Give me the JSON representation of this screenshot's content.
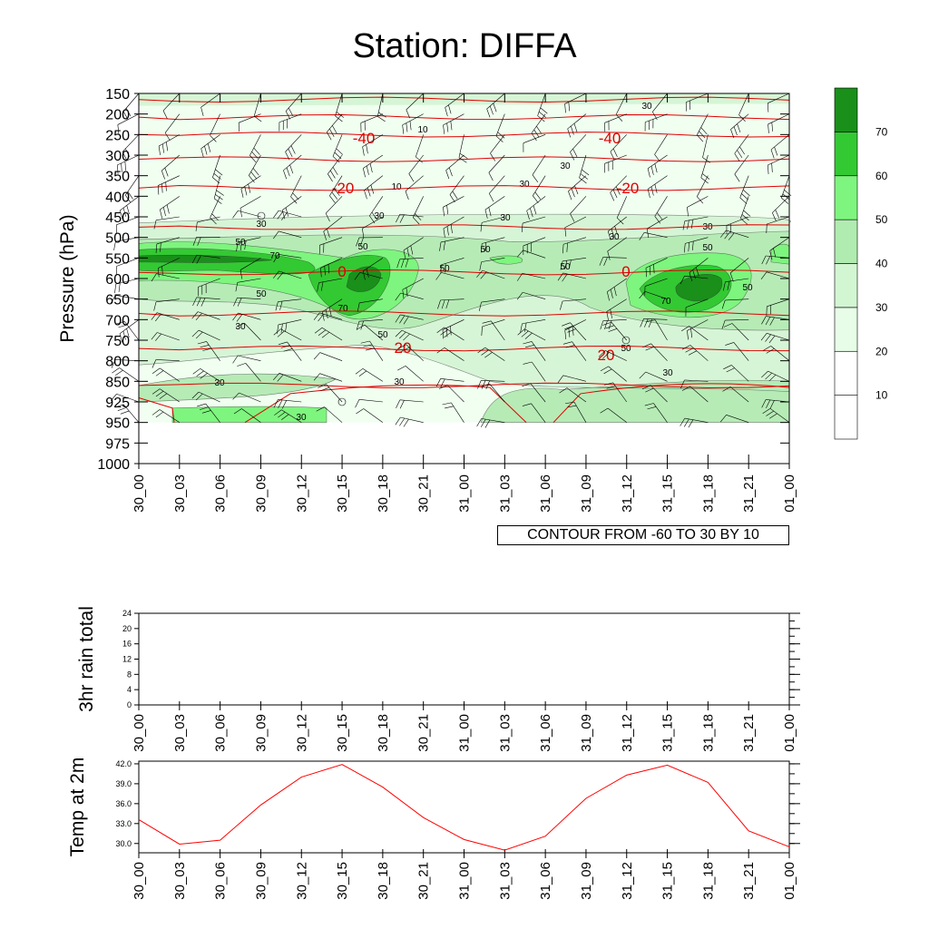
{
  "title": "Station: DIFFA",
  "colors": {
    "temp_line": "#ff0000",
    "isotherm": "#e00000",
    "shade": [
      "#ffffff",
      "#f0fff0",
      "#d6f5d6",
      "#b6ebb6",
      "#7ef57e",
      "#33c933",
      "#1a8f1a"
    ]
  },
  "time_labels": [
    "30_00",
    "30_03",
    "30_06",
    "30_09",
    "30_12",
    "30_15",
    "30_18",
    "30_21",
    "31_00",
    "31_03",
    "31_06",
    "31_09",
    "31_12",
    "31_15",
    "31_18",
    "31_21",
    "01_00"
  ],
  "contour_note": "CONTOUR FROM -60 TO 30 BY 10",
  "chart_data": [
    {
      "type": "heatmap",
      "title": "Station: DIFFA",
      "ylabel": "Pressure (hPa)",
      "y_ticks": [
        "150",
        "200",
        "250",
        "300",
        "350",
        "400",
        "450",
        "500",
        "550",
        "600",
        "650",
        "700",
        "750",
        "800",
        "850",
        "925",
        "950",
        "975",
        "1000"
      ],
      "colorbar": {
        "labels": [
          "10",
          "20",
          "30",
          "40",
          "50",
          "60",
          "70"
        ],
        "bins": [
          0,
          10,
          20,
          30,
          40,
          50,
          60,
          70,
          80
        ]
      },
      "shade_contour_labels": [
        "10",
        "30",
        "50",
        "70"
      ],
      "isotherm_labels": [
        {
          "value": "-40",
          "time": "30_15",
          "pressure": 250
        },
        {
          "value": "-40",
          "time": "31_12",
          "pressure": 250
        },
        {
          "value": "-20",
          "time": "30_15",
          "pressure": 400
        },
        {
          "value": "-20",
          "time": "31_12",
          "pressure": 400
        },
        {
          "value": "0",
          "time": "30_15",
          "pressure": 600
        },
        {
          "value": "0",
          "time": "31_12",
          "pressure": 600
        },
        {
          "value": "20",
          "time": "30_18",
          "pressure": 780
        },
        {
          "value": "20",
          "time": "31_12",
          "pressure": 790
        }
      ],
      "annotation": "CONTOUR FROM -60 TO 30 BY 10"
    },
    {
      "type": "line",
      "ylabel": "3hr rain total",
      "y_ticks": [
        "0",
        "4",
        "8",
        "12",
        "16",
        "20",
        "24"
      ],
      "ylim": [
        0,
        24
      ],
      "categories": [
        "30_00",
        "30_03",
        "30_06",
        "30_09",
        "30_12",
        "30_15",
        "30_18",
        "30_21",
        "31_00",
        "31_03",
        "31_06",
        "31_09",
        "31_12",
        "31_15",
        "31_18",
        "31_21",
        "01_00"
      ],
      "values": [
        0,
        0,
        0,
        0,
        0,
        0,
        0,
        0,
        0,
        0,
        0,
        0,
        0,
        0,
        0,
        0,
        0
      ]
    },
    {
      "type": "line",
      "ylabel": "Temp at 2m",
      "y_ticks": [
        "30.0",
        "33.0",
        "36.0",
        "39.0",
        "42.0"
      ],
      "ylim": [
        28.6,
        42.4
      ],
      "categories": [
        "30_00",
        "30_03",
        "30_06",
        "30_09",
        "30_12",
        "30_15",
        "30_18",
        "30_21",
        "31_00",
        "31_03",
        "31_06",
        "31_09",
        "31_12",
        "31_15",
        "31_18",
        "31_21",
        "01_00"
      ],
      "values": [
        33.6,
        29.9,
        30.5,
        35.8,
        40.0,
        41.9,
        38.5,
        33.9,
        30.6,
        29.0,
        31.1,
        36.8,
        40.3,
        41.8,
        39.2,
        31.9,
        29.5
      ]
    }
  ]
}
